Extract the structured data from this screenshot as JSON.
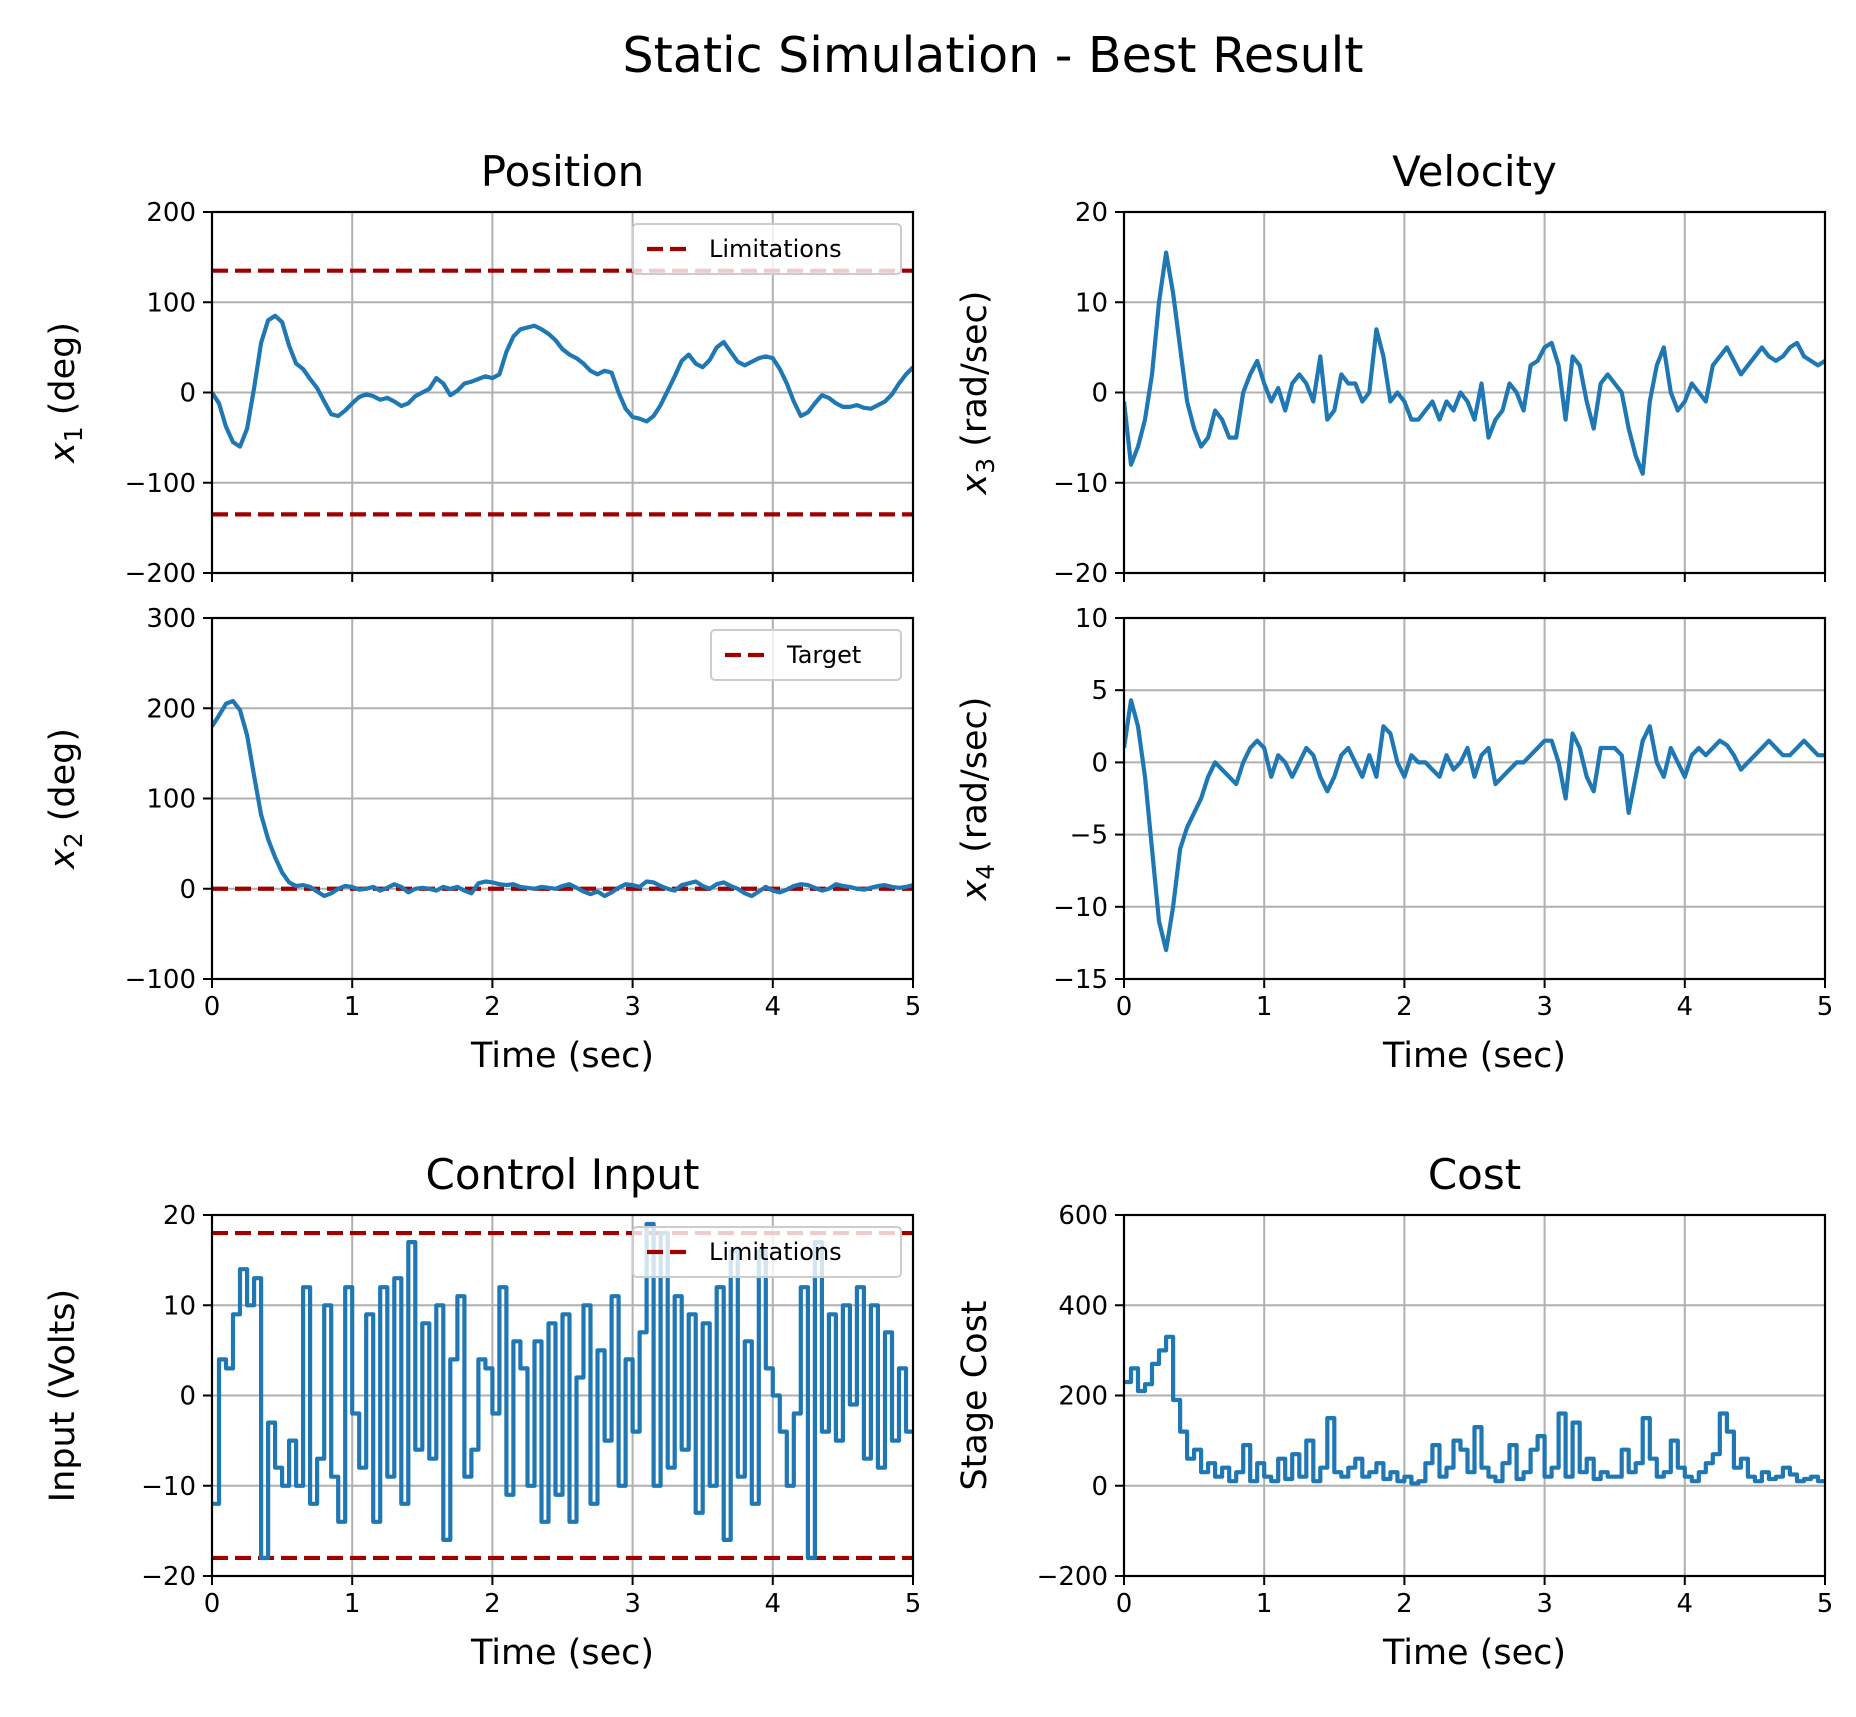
{
  "figure": {
    "title": "Static Simulation - Best Result"
  },
  "colors": {
    "series": "#1f77b4",
    "reference": "#a00000",
    "grid": "#b0b0b0"
  },
  "chart_data": [
    {
      "id": "position_x1",
      "type": "line",
      "title": "Position",
      "xlabel": "",
      "ylabel": "x_1 (deg)",
      "ylabel_base": "x",
      "ylabel_sub": "1",
      "ylabel_rest": " (deg)",
      "xlim": [
        0,
        5
      ],
      "ylim": [
        -200,
        200
      ],
      "xticks": [
        0,
        1,
        2,
        3,
        4,
        5
      ],
      "yticks": [
        -200,
        -100,
        0,
        100,
        200
      ],
      "show_xticklabels": false,
      "grid": true,
      "legend": {
        "label": "Limitations",
        "location": "upper right"
      },
      "ref_lines": [
        135,
        -135
      ],
      "x": [
        0,
        0.05,
        0.1,
        0.15,
        0.2,
        0.25,
        0.3,
        0.35,
        0.4,
        0.45,
        0.5,
        0.55,
        0.6,
        0.65,
        0.7,
        0.75,
        0.8,
        0.85,
        0.9,
        0.95,
        1.0,
        1.05,
        1.1,
        1.15,
        1.2,
        1.25,
        1.3,
        1.35,
        1.4,
        1.45,
        1.5,
        1.55,
        1.6,
        1.65,
        1.7,
        1.75,
        1.8,
        1.85,
        1.9,
        1.95,
        2.0,
        2.05,
        2.1,
        2.15,
        2.2,
        2.25,
        2.3,
        2.35,
        2.4,
        2.45,
        2.5,
        2.55,
        2.6,
        2.65,
        2.7,
        2.75,
        2.8,
        2.85,
        2.9,
        2.95,
        3.0,
        3.05,
        3.1,
        3.15,
        3.2,
        3.25,
        3.3,
        3.35,
        3.4,
        3.45,
        3.5,
        3.55,
        3.6,
        3.65,
        3.7,
        3.75,
        3.8,
        3.85,
        3.9,
        3.95,
        4.0,
        4.05,
        4.1,
        4.15,
        4.2,
        4.25,
        4.3,
        4.35,
        4.4,
        4.45,
        4.5,
        4.55,
        4.6,
        4.65,
        4.7,
        4.75,
        4.8,
        4.85,
        4.9,
        4.95,
        5.0
      ],
      "y": [
        0,
        -12,
        -38,
        -55,
        -60,
        -40,
        5,
        55,
        80,
        85,
        78,
        52,
        32,
        26,
        15,
        5,
        -10,
        -24,
        -26,
        -20,
        -12,
        -5,
        -2,
        -4,
        -8,
        -6,
        -10,
        -15,
        -12,
        -4,
        0,
        4,
        16,
        10,
        -3,
        2,
        10,
        12,
        15,
        18,
        16,
        20,
        45,
        62,
        70,
        72,
        74,
        70,
        65,
        58,
        48,
        42,
        38,
        32,
        24,
        20,
        24,
        22,
        0,
        -18,
        -27,
        -29,
        -32,
        -26,
        -14,
        2,
        18,
        35,
        42,
        32,
        28,
        36,
        50,
        56,
        45,
        34,
        30,
        34,
        38,
        40,
        38,
        26,
        10,
        -10,
        -26,
        -22,
        -12,
        -3,
        -6,
        -12,
        -16,
        -16,
        -14,
        -17,
        -18,
        -14,
        -10,
        -2,
        10,
        20,
        28
      ]
    },
    {
      "id": "velocity_x3",
      "type": "line",
      "title": "Velocity",
      "xlabel": "",
      "ylabel": "x_3 (rad/sec)",
      "ylabel_base": "x",
      "ylabel_sub": "3",
      "ylabel_rest": " (rad/sec)",
      "xlim": [
        0,
        5
      ],
      "ylim": [
        -20,
        20
      ],
      "xticks": [
        0,
        1,
        2,
        3,
        4,
        5
      ],
      "yticks": [
        -20,
        -10,
        0,
        10,
        20
      ],
      "show_xticklabels": false,
      "grid": true,
      "x": [
        0,
        0.05,
        0.1,
        0.15,
        0.2,
        0.25,
        0.3,
        0.35,
        0.4,
        0.45,
        0.5,
        0.55,
        0.6,
        0.65,
        0.7,
        0.75,
        0.8,
        0.85,
        0.9,
        0.95,
        1.0,
        1.05,
        1.1,
        1.15,
        1.2,
        1.25,
        1.3,
        1.35,
        1.4,
        1.45,
        1.5,
        1.55,
        1.6,
        1.65,
        1.7,
        1.75,
        1.8,
        1.85,
        1.9,
        1.95,
        2.0,
        2.05,
        2.1,
        2.15,
        2.2,
        2.25,
        2.3,
        2.35,
        2.4,
        2.45,
        2.5,
        2.55,
        2.6,
        2.65,
        2.7,
        2.75,
        2.8,
        2.85,
        2.9,
        2.95,
        3.0,
        3.05,
        3.1,
        3.15,
        3.2,
        3.25,
        3.3,
        3.35,
        3.4,
        3.45,
        3.5,
        3.55,
        3.6,
        3.65,
        3.7,
        3.75,
        3.8,
        3.85,
        3.9,
        3.95,
        4.0,
        4.05,
        4.1,
        4.15,
        4.2,
        4.25,
        4.3,
        4.35,
        4.4,
        4.45,
        4.5,
        4.55,
        4.6,
        4.65,
        4.7,
        4.75,
        4.8,
        4.85,
        4.9,
        4.95,
        5.0
      ],
      "y": [
        -1,
        -8,
        -6,
        -3,
        2,
        10,
        15.5,
        11,
        5,
        -1,
        -4,
        -6,
        -5,
        -2,
        -3,
        -5,
        -5,
        0,
        2,
        3.5,
        1,
        -1,
        0.5,
        -2,
        1,
        2,
        1,
        -1,
        4,
        -3,
        -2,
        2,
        1,
        1,
        -1,
        0,
        7,
        4,
        -1,
        0,
        -1,
        -3,
        -3,
        -2,
        -1,
        -3,
        -1,
        -2,
        0,
        -1,
        -3,
        1,
        -5,
        -3,
        -2,
        1,
        0,
        -2,
        3,
        3.5,
        5,
        5.5,
        3,
        -3,
        4,
        3,
        -1,
        -4,
        1,
        2,
        1,
        0,
        -4,
        -7,
        -9,
        -1,
        3,
        5,
        0,
        -2,
        -1,
        1,
        0,
        -1,
        3,
        4,
        5,
        3.5,
        2,
        3,
        4,
        5,
        4,
        3.5,
        4,
        5,
        5.5,
        4,
        3.5,
        3,
        3.5
      ]
    },
    {
      "id": "position_x2",
      "type": "line",
      "title": "",
      "xlabel": "Time (sec)",
      "ylabel": "x_2 (deg)",
      "ylabel_base": "x",
      "ylabel_sub": "2",
      "ylabel_rest": " (deg)",
      "xlim": [
        0,
        5
      ],
      "ylim": [
        -100,
        300
      ],
      "xticks": [
        0,
        1,
        2,
        3,
        4,
        5
      ],
      "yticks": [
        -100,
        0,
        100,
        200,
        300
      ],
      "show_xticklabels": true,
      "grid": true,
      "legend": {
        "label": "Target",
        "location": "upper right"
      },
      "ref_lines": [
        0
      ],
      "x": [
        0,
        0.05,
        0.1,
        0.15,
        0.2,
        0.25,
        0.3,
        0.35,
        0.4,
        0.45,
        0.5,
        0.55,
        0.6,
        0.65,
        0.7,
        0.75,
        0.8,
        0.85,
        0.9,
        0.95,
        1.0,
        1.05,
        1.1,
        1.15,
        1.2,
        1.25,
        1.3,
        1.35,
        1.4,
        1.45,
        1.5,
        1.55,
        1.6,
        1.65,
        1.7,
        1.75,
        1.8,
        1.85,
        1.9,
        1.95,
        2.0,
        2.05,
        2.1,
        2.15,
        2.2,
        2.25,
        2.3,
        2.35,
        2.4,
        2.45,
        2.5,
        2.55,
        2.6,
        2.65,
        2.7,
        2.75,
        2.8,
        2.85,
        2.9,
        2.95,
        3.0,
        3.05,
        3.1,
        3.15,
        3.2,
        3.25,
        3.3,
        3.35,
        3.4,
        3.45,
        3.5,
        3.55,
        3.6,
        3.65,
        3.7,
        3.75,
        3.8,
        3.85,
        3.9,
        3.95,
        4.0,
        4.05,
        4.1,
        4.15,
        4.2,
        4.25,
        4.3,
        4.35,
        4.4,
        4.45,
        4.5,
        4.55,
        4.6,
        4.65,
        4.7,
        4.75,
        4.8,
        4.85,
        4.9,
        4.95,
        5.0
      ],
      "y": [
        180,
        192,
        205,
        208,
        198,
        170,
        125,
        82,
        55,
        35,
        18,
        7,
        3,
        4,
        2,
        -3,
        -8,
        -5,
        0,
        3,
        2,
        -1,
        0,
        2,
        -2,
        1,
        5,
        2,
        -4,
        0,
        1,
        0,
        -2,
        2,
        0,
        2,
        -2,
        -5,
        6,
        8,
        7,
        5,
        4,
        5,
        2,
        1,
        0,
        2,
        1,
        0,
        3,
        5,
        1,
        -3,
        -6,
        -3,
        -8,
        -4,
        1,
        5,
        4,
        2,
        8,
        7,
        3,
        0,
        -2,
        4,
        6,
        8,
        3,
        0,
        5,
        7,
        3,
        0,
        -5,
        -8,
        -3,
        2,
        -2,
        -4,
        -1,
        3,
        5,
        4,
        1,
        -2,
        0,
        5,
        3,
        2,
        0,
        -1,
        1,
        3,
        4,
        2,
        1,
        2,
        4
      ]
    },
    {
      "id": "velocity_x4",
      "type": "line",
      "title": "",
      "xlabel": "Time (sec)",
      "ylabel": "x_4 (rad/sec)",
      "ylabel_base": "x",
      "ylabel_sub": "4",
      "ylabel_rest": " (rad/sec)",
      "xlim": [
        0,
        5
      ],
      "ylim": [
        -15,
        10
      ],
      "xticks": [
        0,
        1,
        2,
        3,
        4,
        5
      ],
      "yticks": [
        -15,
        -10,
        -5,
        0,
        5,
        10
      ],
      "show_xticklabels": true,
      "grid": true,
      "x": [
        0,
        0.05,
        0.1,
        0.15,
        0.2,
        0.25,
        0.3,
        0.35,
        0.4,
        0.45,
        0.5,
        0.55,
        0.6,
        0.65,
        0.7,
        0.75,
        0.8,
        0.85,
        0.9,
        0.95,
        1.0,
        1.05,
        1.1,
        1.15,
        1.2,
        1.25,
        1.3,
        1.35,
        1.4,
        1.45,
        1.5,
        1.55,
        1.6,
        1.65,
        1.7,
        1.75,
        1.8,
        1.85,
        1.9,
        1.95,
        2.0,
        2.05,
        2.1,
        2.15,
        2.2,
        2.25,
        2.3,
        2.35,
        2.4,
        2.45,
        2.5,
        2.55,
        2.6,
        2.65,
        2.7,
        2.75,
        2.8,
        2.85,
        2.9,
        2.95,
        3.0,
        3.05,
        3.1,
        3.15,
        3.2,
        3.25,
        3.3,
        3.35,
        3.4,
        3.45,
        3.5,
        3.55,
        3.6,
        3.65,
        3.7,
        3.75,
        3.8,
        3.85,
        3.9,
        3.95,
        4.0,
        4.05,
        4.1,
        4.15,
        4.2,
        4.25,
        4.3,
        4.35,
        4.4,
        4.45,
        4.5,
        4.55,
        4.6,
        4.65,
        4.7,
        4.75,
        4.8,
        4.85,
        4.9,
        4.95,
        5.0
      ],
      "y": [
        1,
        4.3,
        2.5,
        -1,
        -6,
        -11,
        -13,
        -10,
        -6,
        -4.5,
        -3.5,
        -2.5,
        -1,
        0,
        -0.5,
        -1,
        -1.5,
        0,
        1,
        1.5,
        1,
        -1,
        0.5,
        0,
        -1,
        0,
        1,
        0.5,
        -1,
        -2,
        -1,
        0.5,
        1,
        0,
        -1,
        0.5,
        -1,
        2.5,
        2,
        0,
        -1,
        0.5,
        0,
        0,
        -0.5,
        -1,
        0.5,
        -0.5,
        0,
        1,
        -1,
        0.5,
        1,
        -1.5,
        -1,
        -0.5,
        0,
        0,
        0.5,
        1,
        1.5,
        1.5,
        0,
        -2.5,
        2,
        1,
        -1,
        -2,
        1,
        1,
        1,
        0.5,
        -3.5,
        -1,
        1.5,
        2.5,
        0,
        -1,
        1,
        0,
        -1,
        0.5,
        1,
        0.5,
        1,
        1.5,
        1.2,
        0.5,
        -0.5,
        0,
        0.5,
        1,
        1.5,
        1,
        0.5,
        0.5,
        1,
        1.5,
        1,
        0.5,
        0.5
      ]
    },
    {
      "id": "control_input",
      "type": "line",
      "title": "Control Input",
      "xlabel": "Time (sec)",
      "ylabel": "Input (Volts)",
      "xlim": [
        0,
        5
      ],
      "ylim": [
        -20,
        20
      ],
      "xticks": [
        0,
        1,
        2,
        3,
        4,
        5
      ],
      "yticks": [
        -20,
        -10,
        0,
        10,
        20
      ],
      "show_xticklabels": true,
      "grid": true,
      "step": true,
      "legend": {
        "label": "Limitations",
        "location": "upper right"
      },
      "ref_lines": [
        18,
        -18
      ],
      "x": [
        0,
        0.05,
        0.1,
        0.15,
        0.2,
        0.25,
        0.3,
        0.35,
        0.4,
        0.45,
        0.5,
        0.55,
        0.6,
        0.65,
        0.7,
        0.75,
        0.8,
        0.85,
        0.9,
        0.95,
        1.0,
        1.05,
        1.1,
        1.15,
        1.2,
        1.25,
        1.3,
        1.35,
        1.4,
        1.45,
        1.5,
        1.55,
        1.6,
        1.65,
        1.7,
        1.75,
        1.8,
        1.85,
        1.9,
        1.95,
        2.0,
        2.05,
        2.1,
        2.15,
        2.2,
        2.25,
        2.3,
        2.35,
        2.4,
        2.45,
        2.5,
        2.55,
        2.6,
        2.65,
        2.7,
        2.75,
        2.8,
        2.85,
        2.9,
        2.95,
        3.0,
        3.05,
        3.1,
        3.15,
        3.2,
        3.25,
        3.3,
        3.35,
        3.4,
        3.45,
        3.5,
        3.55,
        3.6,
        3.65,
        3.7,
        3.75,
        3.8,
        3.85,
        3.9,
        3.95,
        4.0,
        4.05,
        4.1,
        4.15,
        4.2,
        4.25,
        4.3,
        4.35,
        4.4,
        4.45,
        4.5,
        4.55,
        4.6,
        4.65,
        4.7,
        4.75,
        4.8,
        4.85,
        4.9,
        4.95
      ],
      "y": [
        -12,
        4,
        3,
        9,
        14,
        10,
        13,
        -18,
        -3,
        -8,
        -10,
        -5,
        -10,
        12,
        -12,
        -7,
        10,
        -9,
        -14,
        12,
        -2,
        -8,
        9,
        -14,
        12,
        -9,
        13,
        -12,
        17,
        -6,
        8,
        -7,
        10,
        -16,
        4,
        11,
        -9,
        -6,
        4,
        3,
        -2,
        12,
        -11,
        6,
        3,
        -10,
        6,
        -14,
        8,
        -11,
        9,
        -14,
        2,
        10,
        -12,
        5,
        -5,
        11,
        -10,
        4,
        -4,
        7,
        19,
        -10,
        18,
        -8,
        11,
        -6,
        9,
        -13,
        8,
        -10,
        12,
        -16,
        16,
        -9,
        6,
        -12,
        16,
        3,
        0,
        -4,
        -10,
        -2,
        12,
        -18,
        17,
        -4,
        9,
        -5,
        10,
        -1,
        12,
        -7,
        10,
        -8,
        7,
        -5,
        3,
        -4
      ]
    },
    {
      "id": "cost",
      "type": "line",
      "title": "Cost",
      "xlabel": "Time (sec)",
      "ylabel": "Stage Cost",
      "xlim": [
        0,
        5
      ],
      "ylim": [
        -200,
        600
      ],
      "xticks": [
        0,
        1,
        2,
        3,
        4,
        5
      ],
      "yticks": [
        -200,
        0,
        200,
        400,
        600
      ],
      "show_xticklabels": true,
      "grid": true,
      "step": true,
      "x": [
        0,
        0.05,
        0.1,
        0.15,
        0.2,
        0.25,
        0.3,
        0.35,
        0.4,
        0.45,
        0.5,
        0.55,
        0.6,
        0.65,
        0.7,
        0.75,
        0.8,
        0.85,
        0.9,
        0.95,
        1.0,
        1.05,
        1.1,
        1.15,
        1.2,
        1.25,
        1.3,
        1.35,
        1.4,
        1.45,
        1.5,
        1.55,
        1.6,
        1.65,
        1.7,
        1.75,
        1.8,
        1.85,
        1.9,
        1.95,
        2.0,
        2.05,
        2.1,
        2.15,
        2.2,
        2.25,
        2.3,
        2.35,
        2.4,
        2.45,
        2.5,
        2.55,
        2.6,
        2.65,
        2.7,
        2.75,
        2.8,
        2.85,
        2.9,
        2.95,
        3.0,
        3.05,
        3.1,
        3.15,
        3.2,
        3.25,
        3.3,
        3.35,
        3.4,
        3.45,
        3.5,
        3.55,
        3.6,
        3.65,
        3.7,
        3.75,
        3.8,
        3.85,
        3.9,
        3.95,
        4.0,
        4.05,
        4.1,
        4.15,
        4.2,
        4.25,
        4.3,
        4.35,
        4.4,
        4.45,
        4.5,
        4.55,
        4.6,
        4.65,
        4.7,
        4.75,
        4.8,
        4.85,
        4.9,
        4.95
      ],
      "y": [
        230,
        260,
        210,
        225,
        270,
        300,
        330,
        190,
        120,
        60,
        80,
        30,
        50,
        20,
        40,
        10,
        30,
        90,
        10,
        50,
        20,
        10,
        60,
        15,
        70,
        20,
        100,
        10,
        40,
        150,
        30,
        20,
        40,
        60,
        20,
        30,
        50,
        15,
        30,
        10,
        20,
        5,
        10,
        50,
        90,
        20,
        40,
        100,
        80,
        30,
        130,
        40,
        20,
        10,
        50,
        90,
        15,
        30,
        80,
        110,
        20,
        40,
        160,
        20,
        140,
        30,
        60,
        15,
        30,
        20,
        20,
        80,
        30,
        50,
        150,
        60,
        20,
        30,
        100,
        40,
        20,
        10,
        30,
        50,
        70,
        160,
        120,
        40,
        60,
        20,
        10,
        30,
        15,
        20,
        40,
        25,
        10,
        15,
        20,
        10
      ]
    }
  ]
}
